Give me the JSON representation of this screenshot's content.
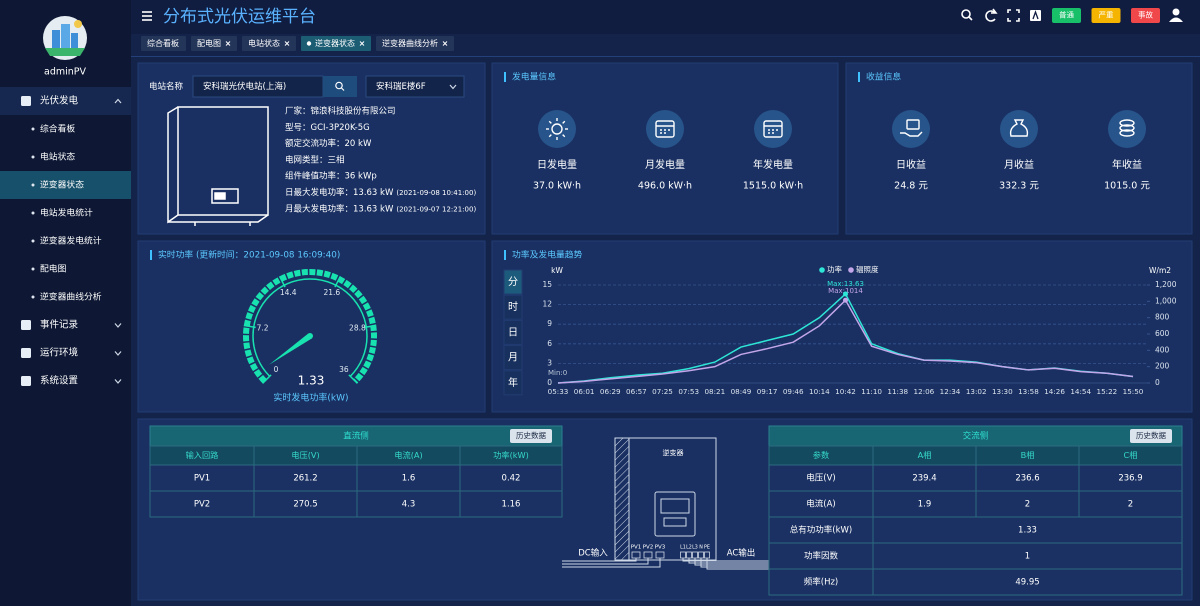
{
  "sidebar": {
    "user": "adminPV",
    "menu": [
      {
        "label": "光伏发电",
        "children": [
          {
            "label": "综合看板"
          },
          {
            "label": "电站状态"
          },
          {
            "label": "逆变器状态",
            "active": true
          },
          {
            "label": "电站发电统计"
          },
          {
            "label": "逆变器发电统计"
          },
          {
            "label": "配电图"
          },
          {
            "label": "逆变器曲线分析"
          }
        ]
      },
      {
        "label": "事件记录"
      },
      {
        "label": "运行环境"
      },
      {
        "label": "系统设置"
      }
    ]
  },
  "header": {
    "title": "分布式光伏运维平台",
    "badges": [
      {
        "label": "普通",
        "color": "#18c06a"
      },
      {
        "label": "严重",
        "color": "#f4b400"
      },
      {
        "label": "事故",
        "color": "#f0474a"
      }
    ]
  },
  "tabs": [
    {
      "label": "综合看板"
    },
    {
      "label": "配电图",
      "closable": true
    },
    {
      "label": "电站状态",
      "closable": true
    },
    {
      "label": "逆变器状态",
      "closable": true,
      "active": true
    },
    {
      "label": "逆变器曲线分析",
      "closable": true
    }
  ],
  "station": {
    "label": "电站名称",
    "name": "安科瑞光伏电站(上海)",
    "device": "安科瑞E楼6F",
    "info": [
      {
        "text": "厂家：锦浪科技股份有限公司"
      },
      {
        "text": "型号：GCI-3P20K-5G"
      },
      {
        "text": "额定交流功率：20 kW"
      },
      {
        "text": "电网类型：三相"
      },
      {
        "text": "组件峰值功率：36 kWp"
      },
      {
        "text": "日最大发电功率：13.63 kW",
        "time": "(2021-09-08 10:41:00)"
      },
      {
        "text": "月最大发电功率：13.63 kW",
        "time": "(2021-09-07 12:21:00)"
      }
    ]
  },
  "generation": {
    "title": "发电量信息",
    "items": [
      {
        "label": "日发电量",
        "value": "37.0 kW·h"
      },
      {
        "label": "月发电量",
        "value": "496.0 kW·h"
      },
      {
        "label": "年发电量",
        "value": "1515.0 kW·h"
      }
    ]
  },
  "revenue": {
    "title": "收益信息",
    "items": [
      {
        "label": "日收益",
        "value": "24.8 元"
      },
      {
        "label": "月收益",
        "value": "332.3 元"
      },
      {
        "label": "年收益",
        "value": "1015.0 元"
      }
    ]
  },
  "realtime": {
    "title": "实时功率 (更新时间：2021-09-08 16:09:40)",
    "value": 1.33,
    "range": [
      0,
      36
    ],
    "ticks": [
      0,
      7.2,
      14.4,
      21.6,
      28.8,
      36
    ],
    "label": "实时发电功率(kW)"
  },
  "trend": {
    "title": "功率及发电量趋势",
    "periods": [
      "分",
      "时",
      "日",
      "月",
      "年"
    ],
    "chart_data": {
      "type": "line",
      "y_label": "kW",
      "y2_label": "W/m2",
      "categories": [
        "05:33",
        "06:01",
        "06:29",
        "06:57",
        "07:25",
        "07:53",
        "08:21",
        "08:49",
        "09:17",
        "09:46",
        "10:14",
        "10:42",
        "11:10",
        "11:38",
        "12:06",
        "12:34",
        "13:02",
        "13:30",
        "13:58",
        "14:26",
        "14:54",
        "15:22",
        "15:50"
      ],
      "series": [
        {
          "name": "功率",
          "color": "#2ee6d6",
          "values": [
            0,
            0.3,
            0.8,
            1.2,
            1.5,
            2.2,
            3.2,
            5.5,
            6.5,
            7.5,
            10,
            13.63,
            6,
            4.5,
            3.5,
            3.5,
            3.2,
            2.5,
            2.0,
            2.3,
            1.8,
            1.5,
            1.0
          ]
        },
        {
          "name": "辐照度",
          "color": "#c3a6ea",
          "axis": "y2",
          "values": [
            0,
            20,
            50,
            80,
            110,
            150,
            200,
            350,
            420,
            500,
            700,
            1014,
            450,
            350,
            280,
            270,
            250,
            200,
            160,
            180,
            140,
            120,
            80
          ]
        }
      ],
      "ylim": [
        0,
        15
      ],
      "yticks": [
        0,
        3,
        6,
        9,
        12,
        15
      ],
      "y2lim": [
        0,
        1200
      ],
      "y2ticks": [
        0,
        200,
        400,
        600,
        800,
        {
          "value": 1000,
          "label": "1,000"
        },
        {
          "value": 1200,
          "label": "1,200"
        }
      ],
      "grid": true,
      "annotations": [
        "Max:13.63",
        "Max:1014",
        "Min:0"
      ]
    }
  },
  "dc": {
    "title": "直流侧",
    "button": "历史数据",
    "columns": [
      "输入回路",
      "电压(V)",
      "电流(A)",
      "功率(kW)"
    ],
    "rows": [
      [
        "PV1",
        "261.2",
        "1.6",
        "0.42"
      ],
      [
        "PV2",
        "270.5",
        "4.3",
        "1.16"
      ]
    ]
  },
  "ac": {
    "title": "交流侧",
    "button": "历史数据",
    "columns": [
      "参数",
      "A相",
      "B相",
      "C相"
    ],
    "rows": [
      [
        "电压(V)",
        "239.4",
        "236.6",
        "236.9"
      ],
      [
        "电流(A)",
        "1.9",
        "2",
        "2"
      ]
    ],
    "merged_rows": [
      [
        "总有功功率(kW)",
        "1.33"
      ],
      [
        "功率因数",
        "1"
      ],
      [
        "频率(Hz)",
        "49.95"
      ]
    ]
  },
  "diagram": {
    "title": "逆变器",
    "dc_label": "DC输入",
    "ac_label": "AC输出",
    "dc_ports": [
      "PV1",
      "PV2",
      "PV3"
    ],
    "ac_ports": [
      "L1",
      "L2",
      "L3",
      "N",
      "PE"
    ]
  }
}
